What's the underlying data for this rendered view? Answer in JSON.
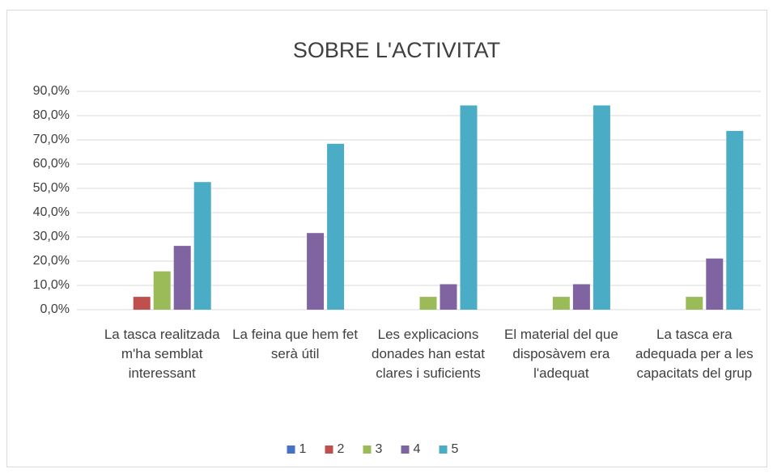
{
  "chart_data": {
    "type": "bar",
    "title": "SOBRE L'ACTIVITAT",
    "categories": [
      "La tasca realitzada m'ha semblat interessant",
      "La feina que hem fet serà útil",
      "Les explicacions donades han estat clares i suficients",
      "El material del que disposàvem era l'adequat",
      "La tasca era adequada per a les capacitats del grup"
    ],
    "series": [
      {
        "name": "1",
        "color": "#4472c4",
        "values": [
          0,
          0,
          0,
          0,
          0
        ]
      },
      {
        "name": "2",
        "color": "#c0504d",
        "values": [
          5.3,
          0,
          0,
          0,
          0
        ]
      },
      {
        "name": "3",
        "color": "#9bbb59",
        "values": [
          15.8,
          0,
          5.3,
          5.3,
          5.3
        ]
      },
      {
        "name": "4",
        "color": "#8064a2",
        "values": [
          26.3,
          31.6,
          10.5,
          10.5,
          21.1
        ]
      },
      {
        "name": "5",
        "color": "#4bacc6",
        "values": [
          52.6,
          68.4,
          84.2,
          84.2,
          73.7
        ]
      }
    ],
    "ylim": [
      0,
      90
    ],
    "yticks": [
      {
        "value": 0,
        "label": "0,0%"
      },
      {
        "value": 10,
        "label": "10,0%"
      },
      {
        "value": 20,
        "label": "20,0%"
      },
      {
        "value": 30,
        "label": "30,0%"
      },
      {
        "value": 40,
        "label": "40,0%"
      },
      {
        "value": 50,
        "label": "50,0%"
      },
      {
        "value": 60,
        "label": "60,0%"
      },
      {
        "value": 70,
        "label": "70,0%"
      },
      {
        "value": 80,
        "label": "80,0%"
      },
      {
        "value": 90,
        "label": "90,0%"
      }
    ],
    "grid": true,
    "legend": "bottom"
  }
}
